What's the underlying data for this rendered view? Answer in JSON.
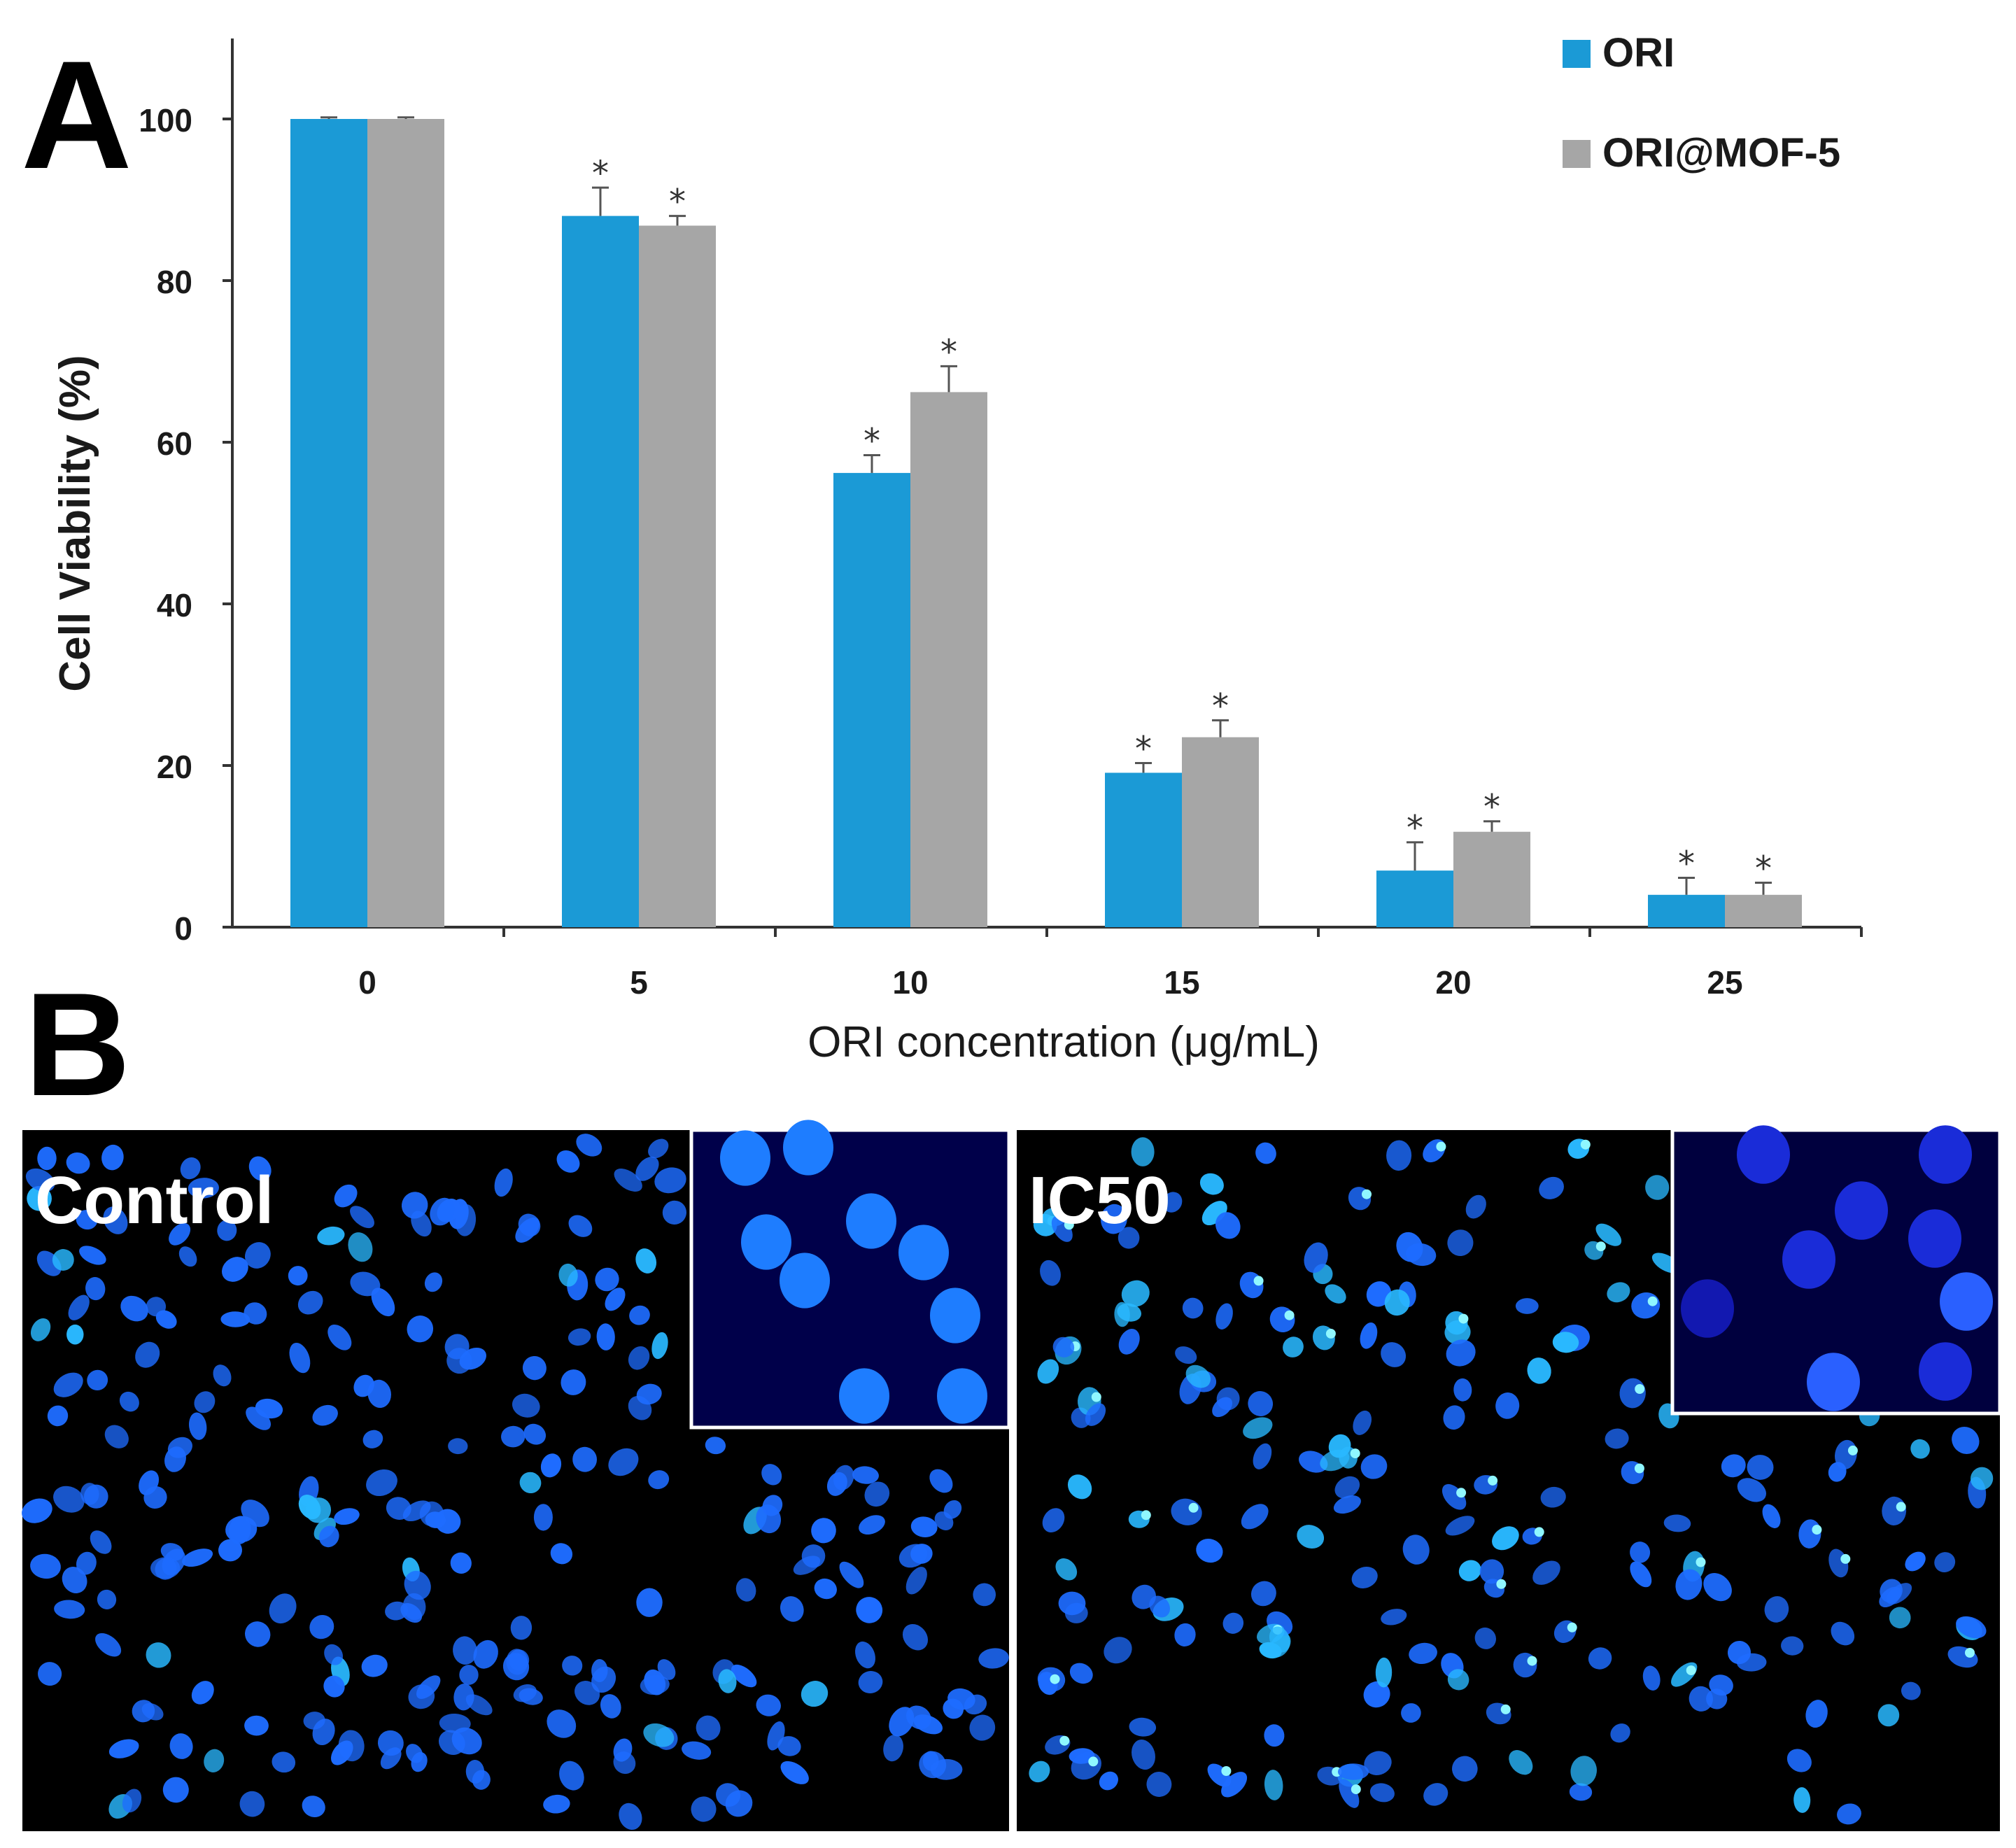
{
  "panel_a": {
    "letter": "A"
  },
  "panel_b": {
    "letter": "B",
    "images": [
      {
        "label": "Control"
      },
      {
        "label": "IC50"
      }
    ]
  },
  "chart_data": {
    "type": "bar",
    "title": "",
    "xlabel": "ORI  concentration (μg/mL)",
    "ylabel": "Cell Viability (%)",
    "categories": [
      "0",
      "5",
      "10",
      "15",
      "20",
      "25"
    ],
    "ylim": [
      0,
      110
    ],
    "yticks": [
      0,
      20,
      40,
      60,
      80,
      100
    ],
    "legend_position": "top-right",
    "significance_marker": "*",
    "series": [
      {
        "name": "ORI",
        "color": "#1b9ad6",
        "values": [
          100,
          88,
          56.2,
          19.1,
          7,
          4
        ],
        "errors": [
          0.2,
          3.5,
          2.2,
          1.2,
          3.5,
          2.1
        ],
        "significant": [
          false,
          true,
          true,
          true,
          true,
          true
        ]
      },
      {
        "name": "ORI@MOF-5",
        "color": "#a6a6a6",
        "values": [
          100,
          86.8,
          66.2,
          23.5,
          11.8,
          4
        ],
        "errors": [
          0.2,
          1.2,
          3.2,
          2.1,
          1.3,
          1.5
        ],
        "significant": [
          false,
          true,
          true,
          true,
          true,
          true
        ]
      }
    ]
  },
  "colors": {
    "micrograph_background": "#000000",
    "nucleus_blue": "#1e6cff",
    "nucleus_bright": "#29b8ff"
  }
}
